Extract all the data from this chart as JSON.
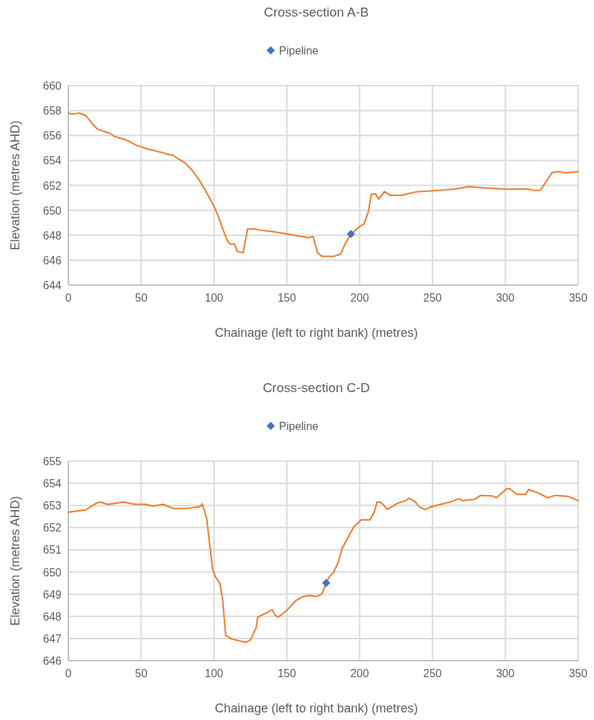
{
  "chart_data": [
    {
      "type": "line",
      "title": "Cross-section A-B",
      "xlabel": "Chainage (left to right bank) (metres)",
      "ylabel": "Elevation (metres AHD)",
      "xlim": [
        0,
        350
      ],
      "xticks": [
        0,
        50,
        100,
        150,
        200,
        250,
        300,
        350
      ],
      "ylim": [
        644,
        660
      ],
      "yticks": [
        644,
        646,
        648,
        650,
        652,
        654,
        656,
        658,
        660
      ],
      "grid": true,
      "legend": "top",
      "series": [
        {
          "color": "#ed7d31",
          "marker": "none",
          "x": [
            0,
            3,
            7,
            12,
            16,
            20,
            25,
            28,
            32,
            38,
            42,
            47,
            55,
            62,
            68,
            72,
            76,
            80,
            85,
            90,
            95,
            100,
            103,
            106,
            109,
            111,
            114,
            116,
            120,
            123,
            128,
            132,
            140,
            150,
            160,
            165,
            168,
            171,
            174,
            182,
            187,
            190,
            194,
            200,
            203,
            206,
            208,
            211,
            213,
            217,
            221,
            229,
            232,
            240,
            255,
            265,
            275,
            285,
            300,
            315,
            320,
            324,
            328,
            332,
            336,
            342,
            350
          ],
          "values": [
            657.8,
            657.7,
            657.8,
            657.6,
            657.0,
            656.5,
            656.3,
            656.2,
            655.9,
            655.7,
            655.5,
            655.2,
            654.9,
            654.7,
            654.5,
            654.4,
            654.1,
            653.8,
            653.2,
            652.4,
            651.4,
            650.3,
            649.5,
            648.5,
            647.6,
            647.3,
            647.3,
            646.7,
            646.6,
            648.5,
            648.5,
            648.4,
            648.3,
            648.1,
            647.9,
            647.8,
            647.9,
            646.6,
            646.3,
            646.3,
            646.5,
            647.3,
            648.1,
            648.7,
            648.9,
            649.9,
            651.3,
            651.3,
            650.9,
            651.5,
            651.2,
            651.2,
            651.3,
            651.5,
            651.6,
            651.7,
            651.9,
            651.8,
            651.7,
            651.7,
            651.6,
            651.6,
            652.3,
            653.0,
            653.1,
            653.0,
            653.1
          ]
        },
        {
          "type": "scatter",
          "name": "Pipeline",
          "color": "#4472c4",
          "marker": "diamond",
          "x": [
            194
          ],
          "values": [
            648.1
          ]
        }
      ]
    },
    {
      "type": "line",
      "title": "Cross-section C-D",
      "xlabel": "Chainage (left to right bank) (metres)",
      "ylabel": "Elevation (metres AHD)",
      "xlim": [
        0,
        350
      ],
      "xticks": [
        0,
        50,
        100,
        150,
        200,
        250,
        300,
        350
      ],
      "ylim": [
        646,
        655
      ],
      "yticks": [
        646,
        647,
        648,
        649,
        650,
        651,
        652,
        653,
        654,
        655
      ],
      "grid": true,
      "legend": "top",
      "series": [
        {
          "color": "#ed7d31",
          "marker": "none",
          "x": [
            0,
            12,
            19,
            22,
            27,
            38,
            46,
            53,
            58,
            65,
            72,
            80,
            90,
            92,
            95,
            97,
            99,
            101,
            104,
            106,
            108,
            112,
            118,
            122,
            125,
            129,
            130,
            137,
            140,
            142,
            144,
            150,
            156,
            161,
            166,
            170,
            174,
            177,
            179,
            182,
            185,
            188,
            193,
            196,
            201,
            207,
            210,
            212,
            215,
            219,
            222,
            226,
            231,
            234,
            238,
            241,
            245,
            249,
            255,
            263,
            268,
            271,
            279,
            283,
            291,
            294,
            301,
            303,
            308,
            314,
            316,
            323,
            329,
            334,
            339,
            343,
            350
          ],
          "values": [
            652.7,
            652.8,
            653.1,
            653.15,
            653.05,
            653.15,
            653.05,
            653.05,
            652.97,
            653.05,
            652.86,
            652.86,
            652.94,
            653.07,
            652.4,
            651.26,
            650.13,
            649.77,
            649.5,
            648.7,
            647.14,
            646.98,
            646.88,
            646.83,
            646.93,
            647.5,
            647.96,
            648.19,
            648.3,
            648.04,
            647.96,
            648.27,
            648.7,
            648.89,
            648.94,
            648.89,
            649.0,
            649.5,
            649.77,
            649.97,
            650.4,
            651.06,
            651.68,
            652.04,
            652.35,
            652.35,
            652.7,
            653.17,
            653.12,
            652.83,
            652.94,
            653.1,
            653.2,
            653.33,
            653.17,
            652.94,
            652.81,
            652.94,
            653.04,
            653.17,
            653.3,
            653.22,
            653.28,
            653.45,
            653.43,
            653.35,
            653.76,
            653.76,
            653.5,
            653.5,
            653.72,
            653.55,
            653.35,
            653.45,
            653.43,
            653.41,
            653.22
          ]
        },
        {
          "type": "scatter",
          "name": "Pipeline",
          "color": "#4472c4",
          "marker": "diamond",
          "x": [
            177
          ],
          "values": [
            649.5
          ]
        }
      ]
    }
  ]
}
